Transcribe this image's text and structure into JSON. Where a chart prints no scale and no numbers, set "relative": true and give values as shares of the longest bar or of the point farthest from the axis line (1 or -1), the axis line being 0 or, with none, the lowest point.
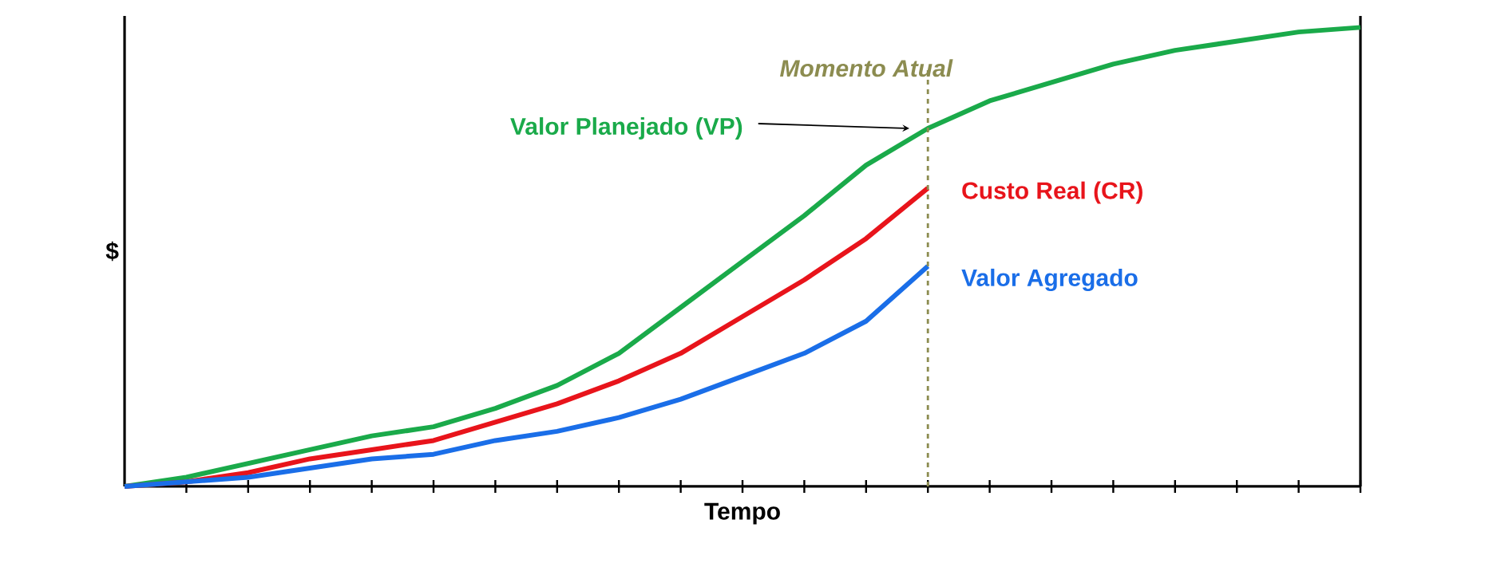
{
  "chart_data": {
    "type": "line",
    "relative": true,
    "xlabel": "Tempo",
    "ylabel": "$",
    "legend": false,
    "tick_labels": false,
    "line_style": "solid",
    "marker": "none",
    "categories": [
      null,
      null,
      null,
      null,
      null,
      null,
      null,
      null,
      null,
      null,
      null,
      null,
      null,
      null,
      null,
      null,
      null,
      null,
      null,
      null,
      null
    ],
    "series": [
      {
        "name": "Valor Planejado (VP)",
        "color": "#1aaa4a",
        "values": [
          0,
          0.02,
          0.05,
          0.08,
          0.11,
          0.13,
          0.17,
          0.22,
          0.29,
          0.39,
          0.49,
          0.59,
          0.7,
          0.78,
          0.84,
          0.88,
          0.92,
          0.95,
          0.97,
          0.99,
          1
        ]
      },
      {
        "name": "Custo Real (CR)",
        "color": "#e8141b",
        "values": [
          0,
          0.01,
          0.03,
          0.06,
          0.08,
          0.1,
          0.14,
          0.18,
          0.23,
          0.29,
          0.37,
          0.45,
          0.54,
          0.65,
          null,
          null,
          null,
          null,
          null,
          null,
          null
        ]
      },
      {
        "name": "Valor Agregado",
        "color": "#1a6ee8",
        "values": [
          0,
          0.01,
          0.02,
          0.04,
          0.06,
          0.07,
          0.1,
          0.12,
          0.15,
          0.19,
          0.24,
          0.29,
          0.36,
          0.48,
          null,
          null,
          null,
          null,
          null,
          null,
          null
        ]
      }
    ],
    "annotations": [
      "Momento Atual"
    ]
  }
}
